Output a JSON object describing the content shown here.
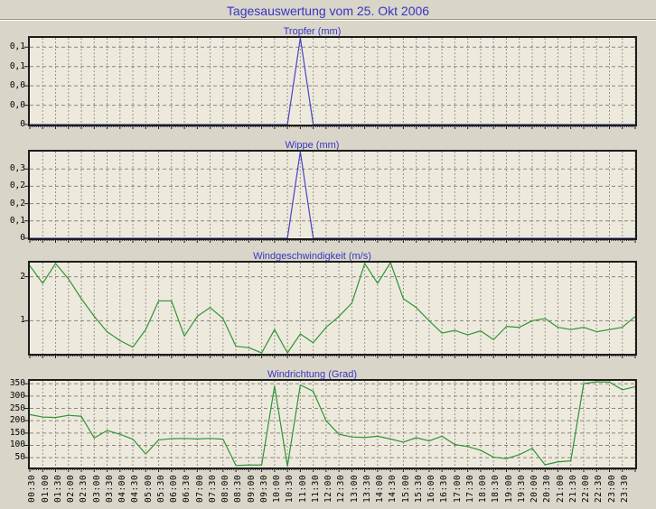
{
  "page_title": "Tagesauswertung vom 25. Okt 2006",
  "colors": {
    "page_bg": "#d9d6c9",
    "plot_bg": "#edeadd",
    "frame": "#1c1c1c",
    "grid_vertical": "#98948a",
    "grid_horizontal": "#8a867c",
    "title_text": "#3734c4",
    "axis_text": "#000000",
    "rain_line": "#4a44c4",
    "wind_line": "#2f9434"
  },
  "x_axis": {
    "start": "00:00",
    "step_minutes": 30,
    "labels": [
      "00:30",
      "01:00",
      "01:30",
      "02:00",
      "02:30",
      "03:00",
      "03:30",
      "04:00",
      "04:30",
      "05:00",
      "05:30",
      "06:00",
      "06:30",
      "07:00",
      "07:30",
      "08:00",
      "08:30",
      "09:00",
      "09:30",
      "10:00",
      "10:30",
      "11:00",
      "11:30",
      "12:00",
      "12:30",
      "13:00",
      "13:30",
      "14:00",
      "14:30",
      "15:00",
      "15:30",
      "16:00",
      "16:30",
      "17:00",
      "17:30",
      "18:00",
      "18:30",
      "19:00",
      "19:30",
      "20:00",
      "20:30",
      "21:00",
      "21:30",
      "22:00",
      "22:30",
      "23:00",
      "23:30"
    ]
  },
  "chart_data": [
    {
      "type": "line",
      "title": "Tropfer (mm)",
      "line_color": "#4a44c4",
      "y_axis": {
        "min": 0,
        "max": 0.112,
        "ticks": [
          {
            "value": 0.1,
            "label": "0,1"
          },
          {
            "value": 0.075,
            "label": "0,1"
          },
          {
            "value": 0.05,
            "label": "0,0"
          },
          {
            "value": 0.025,
            "label": "0,0"
          },
          {
            "value": 0,
            "label": "0"
          }
        ]
      },
      "values": [
        0,
        0,
        0,
        0,
        0,
        0,
        0,
        0,
        0,
        0,
        0,
        0,
        0,
        0,
        0,
        0,
        0,
        0,
        0,
        0,
        0,
        0.112,
        0,
        0,
        0,
        0,
        0,
        0,
        0,
        0,
        0,
        0,
        0,
        0,
        0,
        0,
        0,
        0,
        0,
        0,
        0,
        0,
        0,
        0,
        0,
        0,
        0,
        0
      ]
    },
    {
      "type": "line",
      "title": "Wippe (mm)",
      "line_color": "#4a44c4",
      "y_axis": {
        "min": 0,
        "max": 0.375,
        "ticks": [
          {
            "value": 0.3,
            "label": "0,3"
          },
          {
            "value": 0.225,
            "label": "0,2"
          },
          {
            "value": 0.15,
            "label": "0,2"
          },
          {
            "value": 0.075,
            "label": "0,1"
          },
          {
            "value": 0,
            "label": "0"
          }
        ]
      },
      "values": [
        0,
        0,
        0,
        0,
        0,
        0,
        0,
        0,
        0,
        0,
        0,
        0,
        0,
        0,
        0,
        0,
        0,
        0,
        0,
        0,
        0,
        0.375,
        0,
        0,
        0,
        0,
        0,
        0,
        0,
        0,
        0,
        0,
        0,
        0,
        0,
        0,
        0,
        0,
        0,
        0,
        0,
        0,
        0,
        0,
        0,
        0,
        0,
        0
      ]
    },
    {
      "type": "line",
      "title": "Windgeschwindigkeit (m/s)",
      "line_color": "#2f9434",
      "y_axis": {
        "min": 0.25,
        "max": 2.32,
        "ticks": [
          {
            "value": 2,
            "label": "2"
          },
          {
            "value": 1,
            "label": "1"
          }
        ]
      },
      "values": [
        2.25,
        1.85,
        2.3,
        1.95,
        1.5,
        1.1,
        0.75,
        0.55,
        0.4,
        0.8,
        1.45,
        1.45,
        0.65,
        1.1,
        1.3,
        1.05,
        0.42,
        0.39,
        0.27,
        0.8,
        0.27,
        0.7,
        0.5,
        0.85,
        1.1,
        1.4,
        2.3,
        1.85,
        2.35,
        1.5,
        1.3,
        1.0,
        0.72,
        0.78,
        0.68,
        0.77,
        0.57,
        0.87,
        0.85,
        1.0,
        1.05,
        0.85,
        0.8,
        0.85,
        0.75,
        0.8,
        0.85,
        1.1
      ]
    },
    {
      "type": "line",
      "title": "Windrichtung (Grad)",
      "line_color": "#2f9434",
      "y_axis": {
        "min": 10,
        "max": 362,
        "ticks": [
          {
            "value": 350,
            "label": "350"
          },
          {
            "value": 300,
            "label": "300"
          },
          {
            "value": 250,
            "label": "250"
          },
          {
            "value": 200,
            "label": "200"
          },
          {
            "value": 150,
            "label": "150"
          },
          {
            "value": 100,
            "label": "100"
          },
          {
            "value": 50,
            "label": "50"
          }
        ]
      },
      "values": [
        225,
        215,
        213,
        222,
        218,
        130,
        160,
        145,
        125,
        65,
        122,
        127,
        128,
        126,
        128,
        125,
        18,
        20,
        20,
        340,
        15,
        345,
        320,
        200,
        145,
        134,
        132,
        137,
        126,
        113,
        131,
        118,
        137,
        103,
        95,
        80,
        52,
        46,
        62,
        88,
        21,
        33,
        37,
        351,
        358,
        357,
        326,
        338
      ]
    }
  ]
}
